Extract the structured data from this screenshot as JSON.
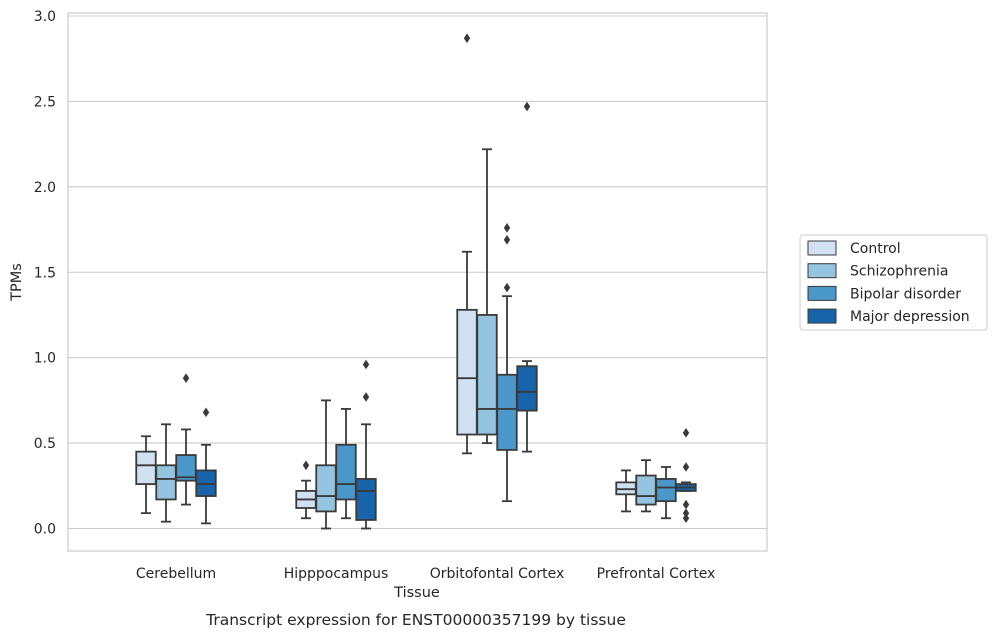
{
  "chart_data": {
    "type": "boxplot",
    "title": "",
    "caption": "Transcript expression for ENST00000357199 by tissue",
    "xlabel": "Tissue",
    "ylabel": "TPMs",
    "ylim": [
      -0.14,
      3.02
    ],
    "yticks": [
      0.0,
      0.5,
      1.0,
      1.5,
      2.0,
      2.5,
      3.0
    ],
    "ytick_labels": [
      "0.0",
      "0.5",
      "1.0",
      "1.5",
      "2.0",
      "2.5",
      "3.0"
    ],
    "grid": "horizontal",
    "legend_position": "right",
    "categories": [
      "Cerebellum",
      "Hipppocampus",
      "Orbitofontal Cortex",
      "Prefrontal Cortex"
    ],
    "series": [
      {
        "name": "Control",
        "color": "#d0e1f2",
        "boxes": [
          {
            "whislo": 0.09,
            "q1": 0.26,
            "med": 0.37,
            "q3": 0.45,
            "whishi": 0.54,
            "fliers": []
          },
          {
            "whislo": 0.06,
            "q1": 0.12,
            "med": 0.17,
            "q3": 0.22,
            "whishi": 0.28,
            "fliers": [
              0.37
            ]
          },
          {
            "whislo": 0.44,
            "q1": 0.55,
            "med": 0.88,
            "q3": 1.28,
            "whishi": 1.62,
            "fliers": [
              2.87
            ]
          },
          {
            "whislo": 0.1,
            "q1": 0.2,
            "med": 0.23,
            "q3": 0.27,
            "whishi": 0.34,
            "fliers": []
          }
        ]
      },
      {
        "name": "Schizophrenia",
        "color": "#94c4df",
        "boxes": [
          {
            "whislo": 0.04,
            "q1": 0.17,
            "med": 0.29,
            "q3": 0.37,
            "whishi": 0.61,
            "fliers": []
          },
          {
            "whislo": 0.0,
            "q1": 0.1,
            "med": 0.19,
            "q3": 0.37,
            "whishi": 0.75,
            "fliers": []
          },
          {
            "whislo": 0.5,
            "q1": 0.55,
            "med": 0.7,
            "q3": 1.25,
            "whishi": 2.22,
            "fliers": []
          },
          {
            "whislo": 0.1,
            "q1": 0.14,
            "med": 0.19,
            "q3": 0.31,
            "whishi": 0.4,
            "fliers": []
          }
        ]
      },
      {
        "name": "Bipolar disorder",
        "color": "#4a98c9",
        "boxes": [
          {
            "whislo": 0.14,
            "q1": 0.28,
            "med": 0.3,
            "q3": 0.43,
            "whishi": 0.58,
            "fliers": [
              0.88
            ]
          },
          {
            "whislo": 0.06,
            "q1": 0.17,
            "med": 0.26,
            "q3": 0.49,
            "whishi": 0.7,
            "fliers": []
          },
          {
            "whislo": 0.16,
            "q1": 0.46,
            "med": 0.7,
            "q3": 0.9,
            "whishi": 1.36,
            "fliers": [
              1.41,
              1.69,
              1.76
            ]
          },
          {
            "whislo": 0.06,
            "q1": 0.16,
            "med": 0.24,
            "q3": 0.29,
            "whishi": 0.36,
            "fliers": []
          }
        ]
      },
      {
        "name": "Major depression",
        "color": "#1764ab",
        "boxes": [
          {
            "whislo": 0.03,
            "q1": 0.19,
            "med": 0.26,
            "q3": 0.34,
            "whishi": 0.49,
            "fliers": [
              0.68
            ]
          },
          {
            "whislo": 0.0,
            "q1": 0.05,
            "med": 0.22,
            "q3": 0.29,
            "whishi": 0.61,
            "fliers": [
              0.77,
              0.96
            ]
          },
          {
            "whislo": 0.45,
            "q1": 0.69,
            "med": 0.8,
            "q3": 0.95,
            "whishi": 0.98,
            "fliers": [
              2.47
            ]
          },
          {
            "whislo": 0.22,
            "q1": 0.22,
            "med": 0.24,
            "q3": 0.26,
            "whishi": 0.27,
            "fliers": [
              0.06,
              0.09,
              0.14,
              0.36,
              0.56
            ]
          }
        ]
      }
    ]
  }
}
